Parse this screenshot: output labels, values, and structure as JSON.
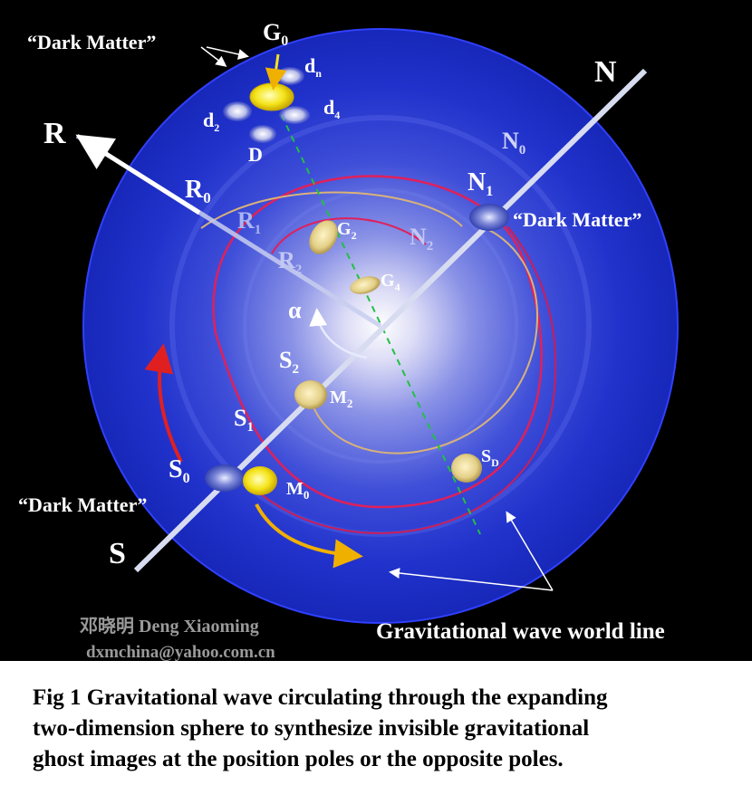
{
  "labels": {
    "dark_matter_top": "“Dark Matter”",
    "dark_matter_right": "“Dark Matter”",
    "dark_matter_left": "“Dark Matter”",
    "axis_n": "N",
    "axis_r": "R",
    "axis_s": "S",
    "g0": {
      "main": "G",
      "sub": "0"
    },
    "dn": {
      "main": "d",
      "sub": "n"
    },
    "d4": {
      "main": "d",
      "sub": "4"
    },
    "d2": {
      "main": "d",
      "sub": "2"
    },
    "d_cap": "D",
    "r0": {
      "main": "R",
      "sub": "0"
    },
    "r1": {
      "main": "R",
      "sub": "1"
    },
    "r2": {
      "main": "R",
      "sub": "2"
    },
    "n0": {
      "main": "N",
      "sub": "0"
    },
    "n1": {
      "main": "N",
      "sub": "1"
    },
    "n2": {
      "main": "N",
      "sub": "2"
    },
    "g2": {
      "main": "G",
      "sub": "2"
    },
    "g4": {
      "main": "G",
      "sub": "4"
    },
    "alpha": "α",
    "s2": {
      "main": "S",
      "sub": "2"
    },
    "s1": {
      "main": "S",
      "sub": "1"
    },
    "s0": {
      "main": "S",
      "sub": "0"
    },
    "m2": {
      "main": "M",
      "sub": "2"
    },
    "m0": {
      "main": "M",
      "sub": "0"
    },
    "sd": {
      "main": "S",
      "sub": "D"
    },
    "world_line": "Gravitational wave world line"
  },
  "credits": {
    "author": "邓晓明 Deng Xiaoming",
    "email": "dxmchina@yahoo.com.cn"
  },
  "caption": {
    "line1": "Fig 1  Gravitational wave circulating through the expanding",
    "line2": "two-dimension sphere to synthesize invisible gravitational",
    "line3": "ghost images at the position poles or the opposite poles."
  },
  "colors": {
    "background": "#000000",
    "sphere": "#1a2fd0",
    "core": "#ffffff",
    "orbit_red": "#e0205a",
    "orbit_tan": "#d9b27a",
    "gold": "#f5e020",
    "dashed_line": "#22c043"
  }
}
